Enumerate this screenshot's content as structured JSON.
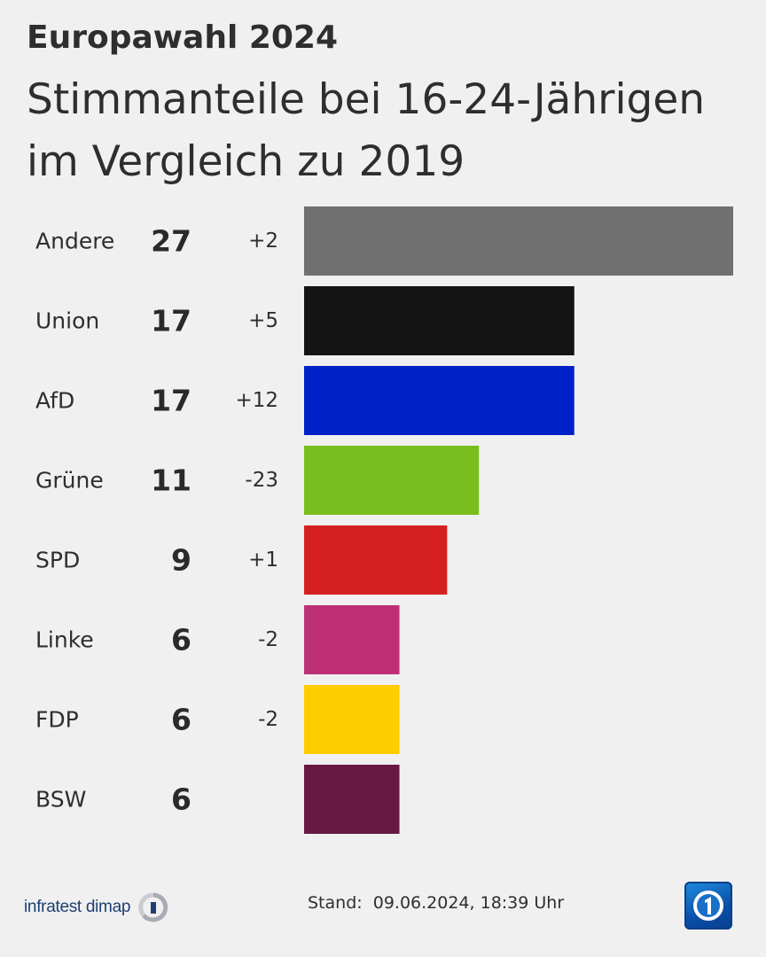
{
  "header": {
    "kicker": "Europawahl 2024",
    "title": "Stimmanteile bei 16-24-Jährigen im Vergleich zu 2019"
  },
  "chart_data": {
    "type": "bar",
    "orientation": "horizontal",
    "categories": [
      "Andere",
      "Union",
      "AfD",
      "Grüne",
      "SPD",
      "Linke",
      "FDP",
      "BSW"
    ],
    "values": [
      27,
      17,
      17,
      11,
      9,
      6,
      6,
      6
    ],
    "changes": [
      "+2",
      "+5",
      "+12",
      "-23",
      "+1",
      "-2",
      "-2",
      ""
    ],
    "colors": [
      "#707070",
      "#141414",
      "#0021c8",
      "#78be1e",
      "#d52022",
      "#bd3075",
      "#ffcc00",
      "#661940"
    ],
    "xlim": [
      0,
      27
    ],
    "grid": false,
    "legend": "none"
  },
  "footer": {
    "source": "infratest dimap",
    "stand": "Stand:  09.06.2024, 18:39 Uhr"
  },
  "icons": {
    "source_logo": "infratest-dimap-logo-icon",
    "broadcaster_logo": "tagesschau-logo-icon"
  }
}
